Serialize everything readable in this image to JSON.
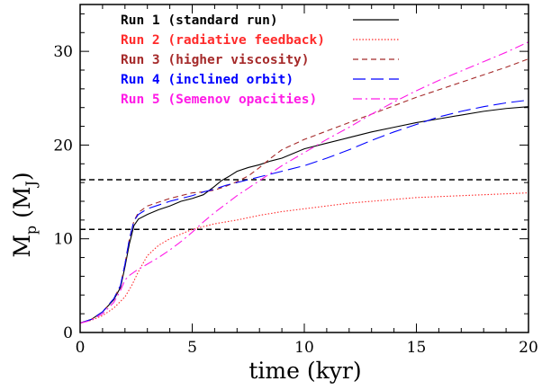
{
  "chart_data": {
    "type": "line",
    "xlabel": "time (kyr)",
    "ylabel": {
      "main": "M",
      "sub": "p",
      "unit_open": " (M",
      "unit_sub": "J",
      "unit_close": ")"
    },
    "xlim": [
      0,
      20
    ],
    "ylim": [
      0,
      35
    ],
    "xticks": [
      0,
      5,
      10,
      15,
      20
    ],
    "yticks": [
      0,
      10,
      20,
      30
    ],
    "grid": false,
    "legend": {
      "placement": "top-left"
    },
    "series": [
      {
        "name": "Run 1 (standard run)",
        "color": "#000000",
        "dash": "solid",
        "x": [
          0,
          0.5,
          1.0,
          1.5,
          1.8,
          2.0,
          2.2,
          2.4,
          2.6,
          3.0,
          3.5,
          4.0,
          4.5,
          5.0,
          5.5,
          6.0,
          6.3,
          6.6,
          7.0,
          7.5,
          8.0,
          8.5,
          9.0,
          10.0,
          11.0,
          12.0,
          13.0,
          14.0,
          15.0,
          16.0,
          17.0,
          18.0,
          19.0,
          20.0
        ],
        "values": [
          1.0,
          1.4,
          2.2,
          3.5,
          4.8,
          7.0,
          9.5,
          11.4,
          12.1,
          12.6,
          13.1,
          13.5,
          14.0,
          14.3,
          14.7,
          15.6,
          16.2,
          16.6,
          17.2,
          17.6,
          17.9,
          18.3,
          18.6,
          19.6,
          20.2,
          20.8,
          21.4,
          21.9,
          22.4,
          22.8,
          23.2,
          23.6,
          23.9,
          24.1
        ]
      },
      {
        "name": "Run 2 (radiative feedback)",
        "color": "#ff2a2a",
        "dash": "dotted",
        "x": [
          0,
          0.5,
          1.0,
          1.5,
          2.0,
          2.3,
          2.6,
          3.0,
          3.5,
          4.0,
          5.0,
          6.0,
          7.0,
          8.0,
          9.0,
          10.0,
          11.0,
          12.0,
          13.0,
          14.0,
          15.0,
          16.0,
          17.0,
          18.0,
          19.0,
          20.0
        ],
        "values": [
          1.0,
          1.3,
          1.8,
          2.6,
          3.8,
          5.0,
          6.5,
          8.2,
          9.3,
          10.0,
          11.0,
          11.6,
          12.0,
          12.5,
          12.9,
          13.2,
          13.5,
          13.8,
          14.0,
          14.2,
          14.4,
          14.5,
          14.6,
          14.7,
          14.8,
          14.9
        ]
      },
      {
        "name": "Run 3 (higher viscosity)",
        "color": "#a52a2a",
        "dash": "dashed",
        "x": [
          0,
          0.5,
          1.0,
          1.5,
          1.8,
          2.0,
          2.2,
          2.4,
          2.6,
          3.0,
          3.5,
          4.0,
          4.5,
          5.0,
          5.5,
          6.0,
          6.5,
          7.0,
          7.5,
          8.0,
          8.5,
          9.0,
          10.0,
          11.0,
          12.0,
          13.0,
          14.0,
          15.0,
          16.0,
          17.0,
          18.0,
          19.0,
          20.0
        ],
        "values": [
          1.0,
          1.4,
          2.2,
          3.6,
          5.0,
          7.3,
          10.0,
          11.9,
          12.8,
          13.5,
          13.9,
          14.3,
          14.6,
          14.9,
          15.0,
          15.2,
          15.6,
          16.1,
          16.7,
          17.6,
          18.6,
          19.5,
          20.6,
          21.5,
          22.4,
          23.3,
          24.2,
          25.1,
          25.9,
          26.7,
          27.5,
          28.3,
          29.2
        ]
      },
      {
        "name": "Run 4 (inclined orbit)",
        "color": "#0000ff",
        "dash": "longdash",
        "x": [
          0,
          0.5,
          1.0,
          1.5,
          1.8,
          2.0,
          2.2,
          2.4,
          2.6,
          3.0,
          3.5,
          4.0,
          4.5,
          5.0,
          5.5,
          6.0,
          6.5,
          7.0,
          7.5,
          8.0,
          8.5,
          9.0,
          10.0,
          11.0,
          12.0,
          13.0,
          14.0,
          15.0,
          16.0,
          17.0,
          18.0,
          19.0,
          20.0
        ],
        "values": [
          1.0,
          1.4,
          2.2,
          3.6,
          5.0,
          7.3,
          10.0,
          11.9,
          12.6,
          13.2,
          13.6,
          14.0,
          14.3,
          14.6,
          15.0,
          15.3,
          15.7,
          16.0,
          16.3,
          16.6,
          16.9,
          17.2,
          17.8,
          18.6,
          19.5,
          20.5,
          21.4,
          22.2,
          23.0,
          23.6,
          24.1,
          24.5,
          24.8
        ]
      },
      {
        "name": "Run 5 (Semenov opacities)",
        "color": "#ff1ae6",
        "dash": "dashdot",
        "x": [
          0,
          0.5,
          1.0,
          1.5,
          1.8,
          2.0,
          2.2,
          2.5,
          3.0,
          3.5,
          4.0,
          4.5,
          5.0,
          5.5,
          6.0,
          6.5,
          7.0,
          7.5,
          8.0,
          8.5,
          9.0,
          10.0,
          11.0,
          12.0,
          13.0,
          14.0,
          15.0,
          16.0,
          17.0,
          18.0,
          19.0,
          20.0
        ],
        "values": [
          1.0,
          1.3,
          2.0,
          3.2,
          4.5,
          5.6,
          6.1,
          6.6,
          7.3,
          8.0,
          8.8,
          9.7,
          10.7,
          11.8,
          12.8,
          13.7,
          14.6,
          15.4,
          16.2,
          17.0,
          17.8,
          19.2,
          20.6,
          21.9,
          23.3,
          24.6,
          25.8,
          26.9,
          27.9,
          28.9,
          29.9,
          31.0
        ]
      }
    ],
    "reference_lines": [
      {
        "y": 11.0,
        "color": "#000000",
        "dash": "dashed"
      },
      {
        "y": 16.3,
        "color": "#000000",
        "dash": "dashed"
      }
    ]
  }
}
